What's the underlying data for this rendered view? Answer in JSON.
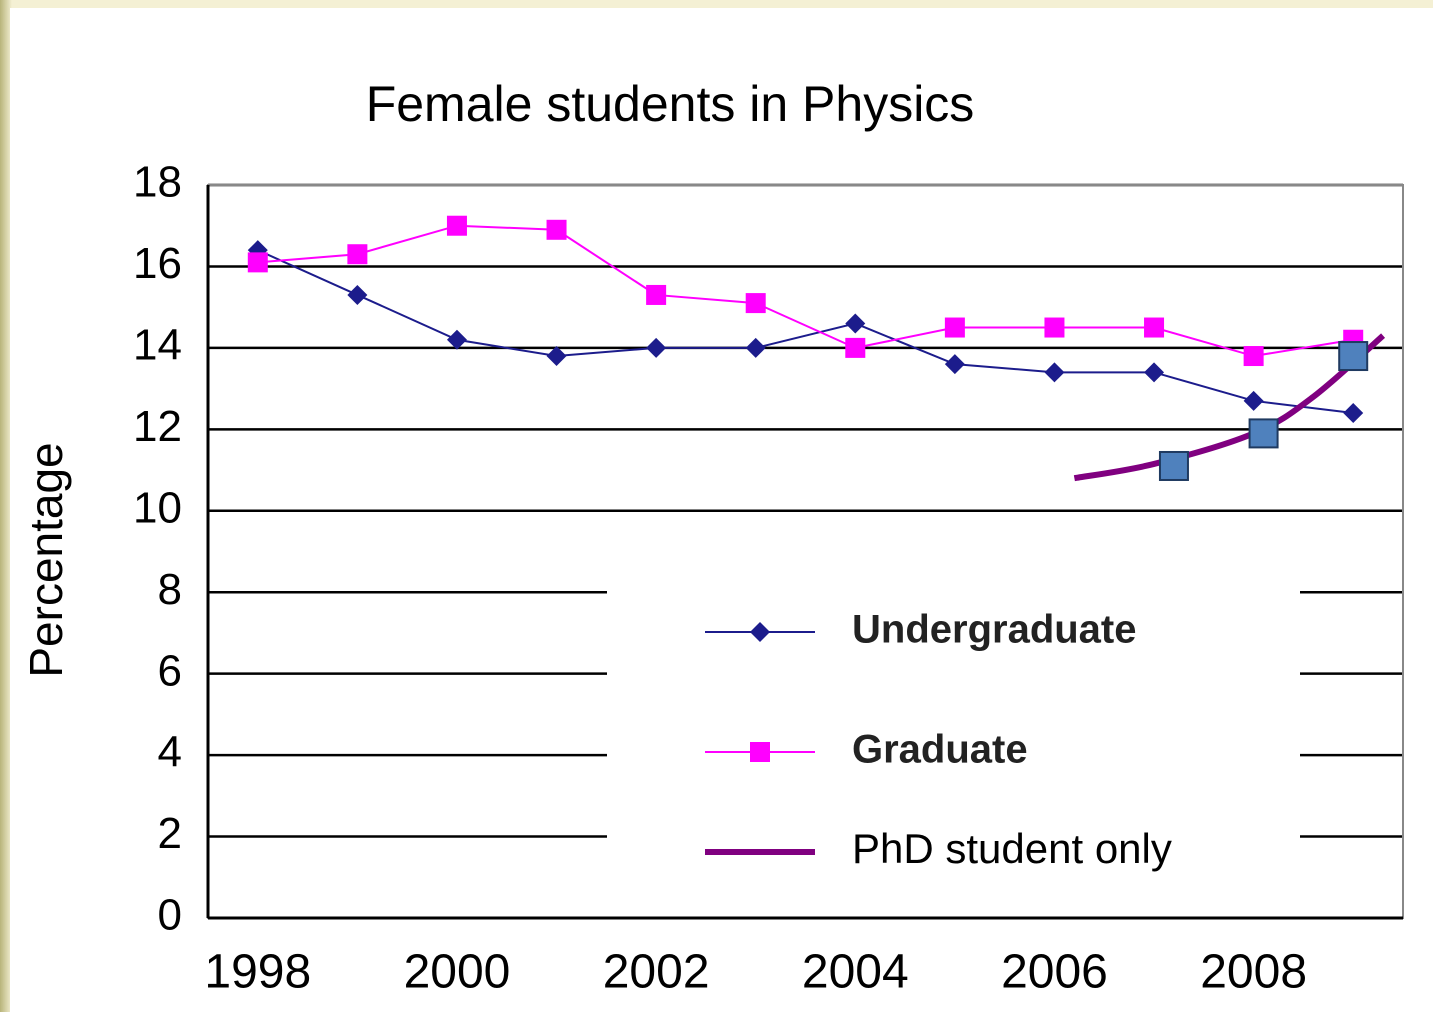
{
  "chart_data": {
    "type": "line",
    "title": "Female students in Physics",
    "y_label": "Percentage",
    "x": [
      1998,
      1999,
      2000,
      2001,
      2002,
      2003,
      2004,
      2005,
      2006,
      2007,
      2008,
      2009
    ],
    "xlim": [
      1997.5,
      2009.5
    ],
    "xticks": [
      1998,
      2000,
      2002,
      2004,
      2006,
      2008
    ],
    "ylim": [
      0,
      18
    ],
    "yticks": [
      0,
      2,
      4,
      6,
      8,
      10,
      12,
      14,
      16,
      18
    ],
    "grid": true,
    "legend": "lower right",
    "series": [
      {
        "name": "Undergraduate",
        "color": "#1c1c8c",
        "marker": "diamond",
        "values": [
          16.4,
          15.3,
          14.2,
          13.8,
          14.0,
          14.0,
          14.6,
          13.6,
          13.4,
          13.4,
          12.7,
          12.4
        ]
      },
      {
        "name": "Graduate",
        "color": "#ff00ff",
        "marker": "square",
        "values": [
          16.1,
          16.3,
          17.0,
          16.9,
          15.3,
          15.1,
          14.0,
          14.5,
          14.5,
          14.5,
          13.8,
          14.2
        ]
      },
      {
        "name": "PhD student only",
        "color": "#800080",
        "marker": "none",
        "x": [
          2006.2,
          2007,
          2008,
          2008.6,
          2009.3
        ],
        "values": [
          10.8,
          11.15,
          11.9,
          12.8,
          14.3
        ],
        "points": {
          "color": "#4f81bd",
          "x": [
            2007.2,
            2008.1,
            2009
          ],
          "values": [
            11.1,
            11.9,
            13.8
          ]
        }
      }
    ]
  }
}
